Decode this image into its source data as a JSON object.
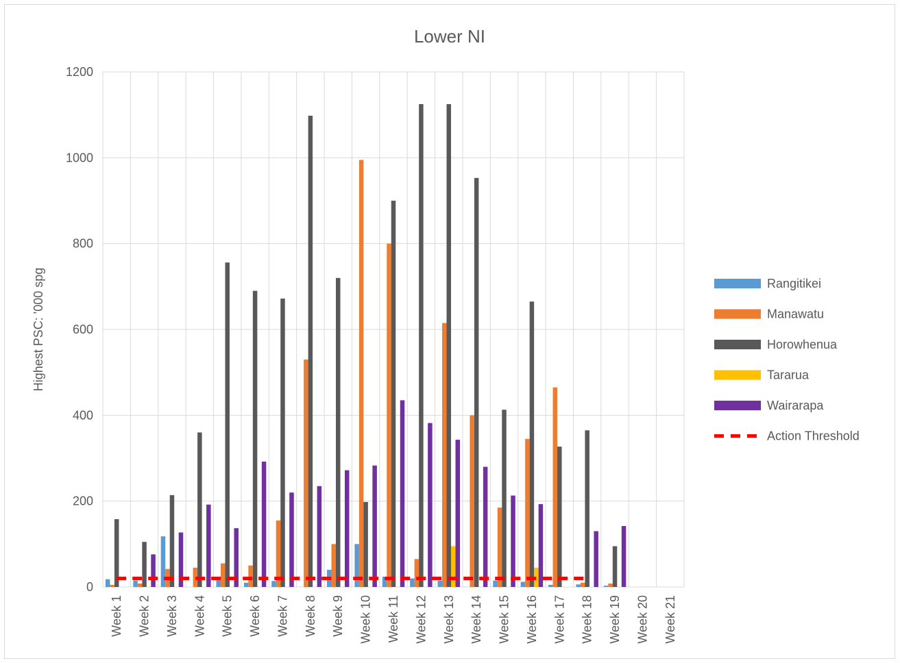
{
  "chart_data": {
    "type": "bar",
    "title": "Lower NI",
    "ylabel": "Highest PSC: '000 spg",
    "xlabel": "",
    "ylim": [
      0,
      1200
    ],
    "yticks": [
      0,
      200,
      400,
      600,
      800,
      1000,
      1200
    ],
    "grid": true,
    "legend_position": "right",
    "categories": [
      "Week 1",
      "Week 2",
      "Week 3",
      "Week 4",
      "Week 5",
      "Week 6",
      "Week 7",
      "Week 8",
      "Week 9",
      "Week 10",
      "Week 11",
      "Week 12",
      "Week 13",
      "Week 14",
      "Week 15",
      "Week 16",
      "Week 17",
      "Week 18",
      "Week 19",
      "Week 20",
      "Week 21"
    ],
    "series": [
      {
        "name": "Rangitikei",
        "color": "#5B9BD5",
        "type": "bar",
        "values": [
          18,
          15,
          118,
          0,
          18,
          10,
          14,
          0,
          40,
          100,
          24,
          20,
          15,
          0,
          15,
          12,
          5,
          6,
          3,
          0,
          0
        ]
      },
      {
        "name": "Manawatu",
        "color": "#ED7D31",
        "type": "bar",
        "values": [
          5,
          8,
          42,
          45,
          55,
          50,
          155,
          530,
          100,
          995,
          800,
          65,
          615,
          400,
          185,
          345,
          465,
          10,
          8,
          0,
          0
        ]
      },
      {
        "name": "Horowhenua",
        "color": "#595959",
        "type": "bar",
        "values": [
          158,
          105,
          214,
          360,
          756,
          690,
          672,
          1098,
          720,
          198,
          900,
          1125,
          1125,
          953,
          413,
          665,
          327,
          365,
          95,
          0,
          0
        ]
      },
      {
        "name": "Tararua",
        "color": "#FFC000",
        "type": "bar",
        "values": [
          0,
          0,
          0,
          0,
          0,
          0,
          0,
          0,
          0,
          0,
          0,
          0,
          95,
          0,
          0,
          45,
          0,
          0,
          0,
          0,
          0
        ]
      },
      {
        "name": "Wairarapa",
        "color": "#7030A0",
        "type": "bar",
        "values": [
          0,
          76,
          127,
          192,
          137,
          292,
          220,
          235,
          272,
          283,
          435,
          382,
          343,
          280,
          213,
          193,
          0,
          130,
          142,
          0,
          0
        ]
      },
      {
        "name": "Action Threshold",
        "color": "#FF0000",
        "type": "line",
        "dashed": true,
        "values": [
          20,
          20,
          20,
          20,
          20,
          20,
          20,
          20,
          20,
          20,
          20,
          20,
          20,
          20,
          20,
          20,
          20,
          20,
          null,
          null,
          null
        ]
      }
    ]
  }
}
